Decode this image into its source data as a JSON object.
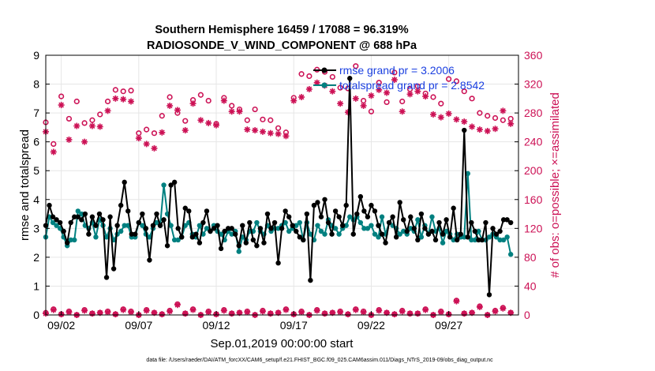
{
  "chart_data": {
    "type": "line",
    "title": "Southern Hemisphere 16459 / 17088 = 96.319%",
    "subtitle": "RADIOSONDE_V_WIND_COMPONENT @ 688 hPa",
    "xlabel": "Sep.01,2019 00:00:00 start",
    "ylabel": "rmse and totalspread",
    "ylabel_right": "# of obs: o=possible; ×=assimilated",
    "xlim": [
      0,
      30.5
    ],
    "ylim": [
      0,
      9
    ],
    "ylim_right": [
      0,
      360
    ],
    "grid": true,
    "x_tick_labels": [
      "09/02",
      "09/07",
      "09/12",
      "09/17",
      "09/22",
      "09/27"
    ],
    "x_tick_values": [
      1,
      6,
      11,
      16,
      21,
      26
    ],
    "y_tick_labels": [
      "0",
      "1",
      "2",
      "3",
      "4",
      "5",
      "6",
      "7",
      "8",
      "9"
    ],
    "y_right_tick_labels": [
      "0",
      "40",
      "80",
      "120",
      "160",
      "200",
      "240",
      "280",
      "320",
      "360"
    ],
    "colors": {
      "rmse": "#000000",
      "spread": "#008080",
      "obs": "#cc1155",
      "legend_text": "#1a3fe0"
    },
    "series": [
      {
        "name": "rmse grand pr = 3.2006",
        "axis": "left",
        "values": [
          3.1,
          3.8,
          3.4,
          3.3,
          3.2,
          2.9,
          2.5,
          3.2,
          3.4,
          3.4,
          3.3,
          3.5,
          2.8,
          3.4,
          3.1,
          3.5,
          3.3,
          1.3,
          3.4,
          1.6,
          3.1,
          3.8,
          4.6,
          3.6,
          2.8,
          2.8,
          3.2,
          3.5,
          3.0,
          1.9,
          3.1,
          3.5,
          3.1,
          3.3,
          2.4,
          4.5,
          4.6,
          3.0,
          2.7,
          3.7,
          3.6,
          2.7,
          2.8,
          2.5,
          3.2,
          3.6,
          2.9,
          3.0,
          3.1,
          2.3,
          2.9,
          3.0,
          3.0,
          2.8,
          2.4,
          3.1,
          2.5,
          3.2,
          2.6,
          2.4,
          3.0,
          2.5,
          3.5,
          3.0,
          3.2,
          1.8,
          3.0,
          3.6,
          3.4,
          3.1,
          2.9,
          2.7,
          2.6,
          3.5,
          1.2,
          3.8,
          3.9,
          3.4,
          4.0,
          3.2,
          2.8,
          3.6,
          3.4,
          3.1,
          3.8,
          8.2,
          2.8,
          3.5,
          4.1,
          3.6,
          3.4,
          3.8,
          3.6,
          3.1,
          2.8,
          2.5,
          3.2,
          3.4,
          2.7,
          3.9,
          3.3,
          2.9,
          3.4,
          3.0,
          2.6,
          3.5,
          3.0,
          2.8,
          2.9,
          2.6,
          3.2,
          2.8,
          3.3,
          2.7,
          3.7,
          2.6,
          2.8,
          6.4,
          2.7,
          3.2,
          2.9,
          2.6,
          2.6,
          3.2,
          0.7,
          3.0,
          2.8,
          2.9,
          3.3,
          3.3,
          3.2
        ],
        "marker": "filled-circle"
      },
      {
        "name": "totalspread grand pr = 2.8542",
        "axis": "left",
        "values": [
          2.7,
          3.4,
          3.2,
          3.1,
          3.0,
          2.7,
          2.4,
          2.6,
          2.6,
          3.6,
          3.5,
          3.1,
          3.0,
          3.2,
          2.7,
          3.3,
          3.1,
          2.7,
          3.0,
          2.6,
          2.8,
          2.9,
          3.1,
          3.1,
          2.7,
          2.7,
          3.2,
          3.1,
          2.8,
          2.7,
          3.0,
          3.2,
          3.1,
          4.5,
          3.5,
          3.1,
          2.6,
          2.6,
          2.7,
          3.1,
          3.2,
          2.8,
          2.7,
          3.1,
          2.8,
          3.0,
          2.9,
          3.1,
          2.9,
          2.8,
          2.6,
          2.9,
          2.8,
          2.9,
          2.2,
          2.7,
          2.6,
          2.9,
          2.9,
          3.2,
          2.9,
          2.8,
          3.1,
          2.9,
          3.0,
          3.0,
          3.1,
          3.2,
          2.9,
          3.0,
          3.1,
          3.2,
          2.6,
          3.2,
          2.8,
          2.6,
          3.1,
          2.9,
          2.8,
          3.3,
          3.1,
          3.0,
          2.8,
          3.0,
          3.1,
          3.4,
          3.3,
          3.4,
          3.2,
          3.0,
          3.0,
          3.1,
          2.8,
          2.7,
          3.4,
          2.8,
          3.2,
          3.1,
          3.0,
          2.8,
          2.9,
          2.8,
          3.0,
          2.9,
          3.3,
          2.7,
          3.1,
          2.8,
          3.4,
          2.9,
          3.0,
          2.5,
          2.9,
          2.8,
          2.6,
          2.8,
          2.7,
          2.7,
          4.9,
          2.6,
          2.6,
          2.9,
          2.6,
          2.6,
          2.7,
          2.8,
          2.7,
          2.6,
          2.6,
          2.7,
          2.1
        ],
        "marker": "filled-circle"
      },
      {
        "name": "obs possible",
        "axis": "right",
        "marker": "circle",
        "x": [
          0.0,
          0.5,
          1.0,
          1.5,
          2.0,
          2.5,
          3.0,
          3.5,
          4.0,
          4.5,
          5.0,
          5.5,
          6.0,
          6.5,
          7.0,
          7.5,
          8.0,
          8.5,
          9.0,
          9.5,
          10.0,
          10.5,
          11.0,
          11.5,
          12.0,
          12.5,
          13.0,
          13.5,
          14.0,
          14.5,
          15.0,
          15.5,
          16.0,
          16.5,
          17.0,
          17.5,
          18.0,
          18.5,
          19.0,
          19.5,
          20.0,
          20.5,
          21.0,
          21.5,
          22.0,
          22.5,
          23.0,
          23.5,
          24.0,
          24.5,
          25.0,
          25.5,
          26.0,
          26.5,
          27.0,
          27.5,
          28.0,
          28.5,
          29.0,
          29.5,
          30.0
        ],
        "values": [
          267,
          237,
          303,
          272,
          296,
          266,
          270,
          278,
          296,
          312,
          310,
          311,
          252,
          257,
          252,
          276,
          302,
          280,
          269,
          298,
          305,
          297,
          265,
          301,
          290,
          285,
          270,
          285,
          271,
          270,
          259,
          253,
          301,
          334,
          331,
          340,
          337,
          330,
          315,
          314,
          345,
          297,
          282,
          322,
          295,
          336,
          296,
          313,
          317,
          307,
          302,
          293,
          327,
          324,
          310,
          300,
          280,
          276,
          273,
          270,
          272
        ]
      },
      {
        "name": "obs assimilated",
        "axis": "right",
        "marker": "asterisk",
        "x": [
          0.0,
          0.5,
          1.0,
          1.5,
          2.0,
          2.5,
          3.0,
          3.5,
          4.0,
          4.5,
          5.0,
          5.5,
          6.0,
          6.5,
          7.0,
          7.5,
          8.0,
          8.5,
          9.0,
          9.5,
          10.0,
          10.5,
          11.0,
          11.5,
          12.0,
          12.5,
          13.0,
          13.5,
          14.0,
          14.5,
          15.0,
          15.5,
          16.0,
          16.5,
          17.0,
          17.5,
          18.0,
          18.5,
          19.0,
          19.5,
          20.0,
          20.5,
          21.0,
          21.5,
          22.0,
          22.5,
          23.0,
          23.5,
          24.0,
          24.5,
          25.0,
          25.5,
          26.0,
          26.5,
          27.0,
          27.5,
          28.0,
          28.5,
          29.0,
          29.5,
          30.0
        ],
        "values": [
          254,
          226,
          291,
          243,
          262,
          240,
          262,
          261,
          283,
          300,
          299,
          296,
          245,
          237,
          231,
          253,
          290,
          284,
          256,
          293,
          270,
          266,
          263,
          297,
          282,
          282,
          257,
          256,
          254,
          252,
          251,
          248,
          297,
          302,
          313,
          322,
          318,
          310,
          293,
          281,
          300,
          290,
          304,
          312,
          308,
          326,
          282,
          306,
          310,
          303,
          278,
          274,
          279,
          271,
          268,
          261,
          257,
          255,
          258,
          283,
          265
        ]
      },
      {
        "name": "obs possible (bottom)",
        "axis": "right",
        "marker": "circle",
        "x": [
          0.0,
          0.5,
          1.0,
          1.5,
          2.0,
          2.5,
          3.0,
          3.5,
          4.0,
          4.5,
          5.0,
          5.5,
          6.0,
          6.5,
          7.0,
          7.5,
          8.0,
          8.5,
          9.0,
          9.5,
          10.0,
          10.5,
          11.0,
          11.5,
          12.0,
          12.5,
          13.0,
          13.5,
          14.0,
          14.5,
          15.0,
          15.5,
          16.0,
          16.5,
          17.0,
          17.5,
          18.0,
          18.5,
          19.0,
          19.5,
          20.0,
          20.5,
          21.0,
          21.5,
          22.0,
          22.5,
          23.0,
          23.5,
          24.0,
          24.5,
          25.0,
          25.5,
          26.0,
          26.5,
          27.0,
          27.5,
          28.0,
          28.5,
          29.0,
          29.5,
          30.0
        ],
        "values": [
          3,
          8,
          1,
          5,
          0,
          7,
          2,
          3,
          5,
          1,
          8,
          5,
          0,
          7,
          3,
          1,
          6,
          15,
          2,
          8,
          0,
          5,
          1,
          7,
          2,
          3,
          5,
          0,
          6,
          2,
          3,
          8,
          1,
          5,
          0,
          7,
          2,
          3,
          5,
          1,
          8,
          5,
          0,
          7,
          3,
          1,
          6,
          2,
          2,
          8,
          0,
          5,
          1,
          20,
          2,
          3,
          12,
          0,
          6,
          10,
          3
        ]
      },
      {
        "name": "obs assimilated (bottom)",
        "axis": "right",
        "marker": "asterisk",
        "x": [
          0.0,
          0.5,
          1.0,
          1.5,
          2.0,
          2.5,
          3.0,
          3.5,
          4.0,
          4.5,
          5.0,
          5.5,
          6.0,
          6.5,
          7.0,
          7.5,
          8.0,
          8.5,
          9.0,
          9.5,
          10.0,
          10.5,
          11.0,
          11.5,
          12.0,
          12.5,
          13.0,
          13.5,
          14.0,
          14.5,
          15.0,
          15.5,
          16.0,
          16.5,
          17.0,
          17.5,
          18.0,
          18.5,
          19.0,
          19.5,
          20.0,
          20.5,
          21.0,
          21.5,
          22.0,
          22.5,
          23.0,
          23.5,
          24.0,
          24.5,
          25.0,
          25.5,
          26.0,
          26.5,
          27.0,
          27.5,
          28.0,
          28.5,
          29.0,
          29.5,
          30.0
        ],
        "values": [
          2,
          7,
          1,
          4,
          0,
          6,
          2,
          3,
          4,
          1,
          7,
          4,
          0,
          6,
          3,
          1,
          5,
          14,
          2,
          7,
          0,
          4,
          1,
          6,
          2,
          3,
          4,
          0,
          5,
          2,
          3,
          7,
          1,
          4,
          0,
          6,
          2,
          3,
          4,
          1,
          7,
          4,
          0,
          6,
          3,
          1,
          5,
          2,
          2,
          7,
          0,
          4,
          1,
          19,
          2,
          3,
          11,
          0,
          5,
          9,
          3
        ]
      }
    ],
    "legend": [
      "rmse grand pr = 3.2006",
      "totalspread grand pr = 2.8542"
    ],
    "legend_placement": "top-right"
  },
  "footer": "data file: /Users/raeder/DAI/ATM_forcXX/CAM6_setup/f.e21.FHIST_BGC.f09_025.CAM6assim.011/Diags_NTrS_2019-09/obs_diag_output.nc"
}
